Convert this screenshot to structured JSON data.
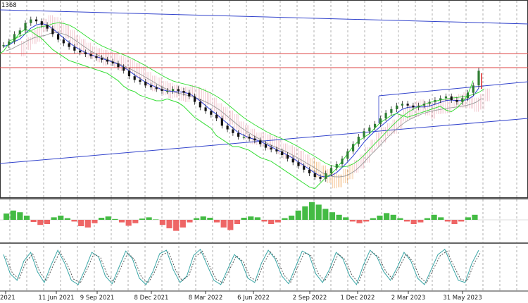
{
  "instrument_label": "1368",
  "colors": {
    "background": "#ffffff",
    "grid": "#777777",
    "panel_border": "#333333",
    "candle_up": "#2e7d32",
    "candle_down": "#111111",
    "ma_blue": "#2a3fd6",
    "ma_green": "#33dd33",
    "ma_gray": "#999999",
    "trend_line": "#3344cc",
    "resistance_line": "#dd4444",
    "cloud_pink": "#e8a3b0",
    "cloud_orange": "#f0a050",
    "hist_up": "#44bb44",
    "hist_down": "#ee6666",
    "osc_teal": "#3aa6a6",
    "osc_dotted": "#555555"
  },
  "chart_data": [
    {
      "type": "line",
      "panel": "price",
      "title": "",
      "x_ticks": [
        "2021",
        "11 Jun 2021",
        "9 Sep 2021",
        "8 Dec 2021",
        "8 Mar 2022",
        "6 Jun 2022",
        "2 Sep 2022",
        "1 Dec 2022",
        "2 Mar 2023",
        "31 May 2023"
      ],
      "grid": true,
      "series": [
        {
          "values": [
            0.8,
            0.82,
            0.86,
            0.88,
            0.92,
            0.94,
            0.93,
            0.91,
            0.89,
            0.86,
            0.83,
            0.81,
            0.79,
            0.77,
            0.76,
            0.75,
            0.74,
            0.73,
            0.72,
            0.71,
            0.7,
            0.68,
            0.66,
            0.63,
            0.61,
            0.6,
            0.58,
            0.57,
            0.56,
            0.55,
            0.55,
            0.56,
            0.55,
            0.54,
            0.52,
            0.49,
            0.46,
            0.44,
            0.42,
            0.4,
            0.36,
            0.34,
            0.32,
            0.3,
            0.3,
            0.29,
            0.28,
            0.26,
            0.24,
            0.23,
            0.22,
            0.2,
            0.18,
            0.16,
            0.14,
            0.12,
            0.1,
            0.08,
            0.07,
            0.1,
            0.13,
            0.15,
            0.18,
            0.22,
            0.26,
            0.3,
            0.33,
            0.35,
            0.37,
            0.4,
            0.43,
            0.45,
            0.47,
            0.48,
            0.47,
            0.46,
            0.47,
            0.48,
            0.49,
            0.5,
            0.51,
            0.52,
            0.5,
            0.49,
            0.51,
            0.54,
            0.58,
            0.66
          ]
        }
      ],
      "overlays": {
        "resistance_levels": 2,
        "trend_lines": 3
      }
    },
    {
      "type": "bar",
      "panel": "histogram",
      "title": "",
      "values": [
        0.15,
        0.22,
        0.18,
        0.1,
        -0.05,
        -0.12,
        -0.1,
        0.06,
        0.1,
        0.04,
        -0.04,
        -0.15,
        -0.18,
        -0.08,
        0.05,
        0.08,
        0.02,
        -0.06,
        -0.14,
        -0.08,
        0.03,
        0.06,
        0.01,
        -0.12,
        -0.2,
        -0.26,
        -0.18,
        -0.06,
        0.04,
        0.08,
        0.05,
        -0.06,
        -0.18,
        -0.24,
        -0.1,
        0.05,
        0.08,
        0.06,
        -0.04,
        -0.1,
        -0.06,
        0.04,
        0.1,
        0.22,
        0.32,
        0.42,
        0.36,
        0.26,
        0.18,
        0.12,
        0.06,
        -0.04,
        -0.08,
        -0.04,
        0.04,
        0.1,
        0.16,
        0.12,
        0.04,
        -0.04,
        -0.1,
        -0.06,
        0.04,
        0.12,
        0.06,
        -0.04,
        -0.1,
        -0.04,
        0.06,
        0.12
      ]
    },
    {
      "type": "line",
      "panel": "oscillator",
      "title": "",
      "series": [
        {
          "values": [
            0.8,
            0.35,
            0.2,
            0.65,
            0.85,
            0.4,
            0.15,
            0.55,
            0.9,
            0.6,
            0.2,
            0.1,
            0.45,
            0.85,
            0.75,
            0.3,
            0.12,
            0.5,
            0.88,
            0.7,
            0.25,
            0.1,
            0.4,
            0.82,
            0.9,
            0.45,
            0.15,
            0.3,
            0.78,
            0.92,
            0.55,
            0.2,
            0.1,
            0.45,
            0.8,
            0.65,
            0.25,
            0.15,
            0.6,
            0.9,
            0.7,
            0.3,
            0.12,
            0.5,
            0.88,
            0.8,
            0.35,
            0.15,
            0.45,
            0.85,
            0.7,
            0.3,
            0.1,
            0.55,
            0.9,
            0.75,
            0.4,
            0.2,
            0.5,
            0.85,
            0.65,
            0.25,
            0.1,
            0.45,
            0.8,
            0.92,
            0.55,
            0.2,
            0.15,
            0.6,
            0.9
          ]
        }
      ]
    }
  ]
}
